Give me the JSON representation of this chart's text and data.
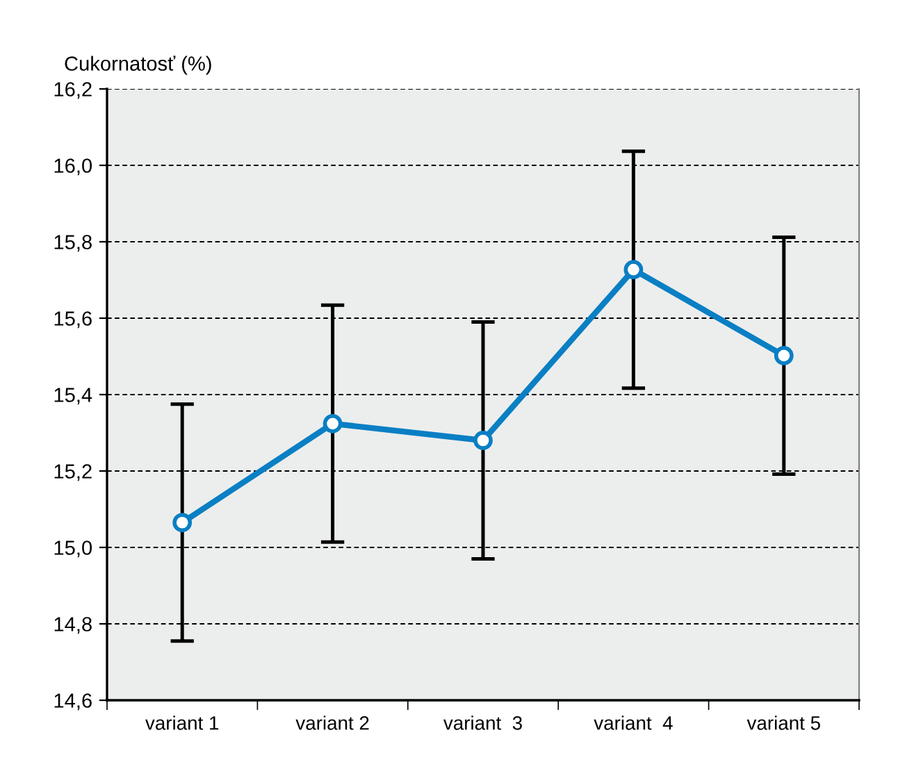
{
  "chart_data": {
    "type": "line",
    "ylabel": "Cukornatosť (%)",
    "categories": [
      "variant 1",
      "variant 2",
      "variant  3",
      "variant  4",
      "variant 5"
    ],
    "series": [
      {
        "color": "#0a7fc4",
        "values": [
          15.065,
          15.324,
          15.28,
          15.727,
          15.502
        ],
        "errors": [
          0.31,
          0.31,
          0.31,
          0.31,
          0.31
        ]
      }
    ],
    "ylim": [
      14.6,
      16.2
    ],
    "yticks": [
      {
        "value": 14.6,
        "label": "14,6"
      },
      {
        "value": 14.8,
        "label": "14,8"
      },
      {
        "value": 15.0,
        "label": "15,0"
      },
      {
        "value": 15.2,
        "label": "15,2"
      },
      {
        "value": 15.4,
        "label": "15,4"
      },
      {
        "value": 15.6,
        "label": "15,6"
      },
      {
        "value": 15.8,
        "label": "15,8"
      },
      {
        "value": 16.0,
        "label": "16,0"
      },
      {
        "value": 16.2,
        "label": "16,2"
      }
    ],
    "grid": "y",
    "marker": "circle",
    "line_style": "solid"
  }
}
